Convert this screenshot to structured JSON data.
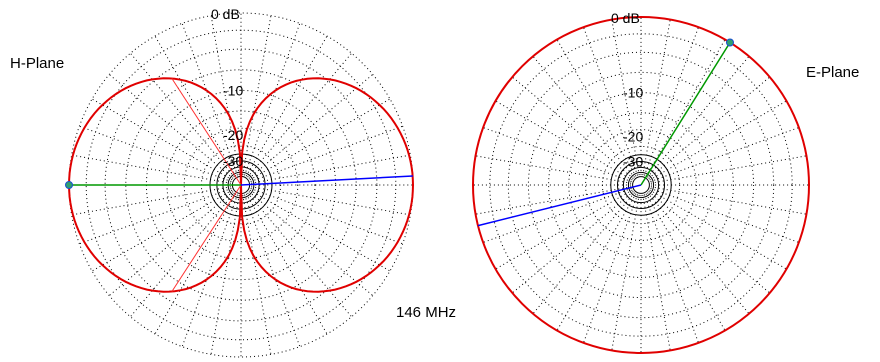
{
  "chart_data": [
    {
      "type": "polar",
      "title": "H-Plane",
      "radial_axis": {
        "unit": "dB",
        "tick_labels": [
          "0 dB",
          "-10",
          "-20",
          "-30"
        ],
        "scale": "log"
      },
      "grid": true,
      "pattern": {
        "shape": "figure-eight",
        "nulls_deg": [
          0,
          180
        ],
        "max_deg": [
          90,
          270
        ],
        "max_gain_db": 0
      },
      "markers": {
        "green_line_deg": 270,
        "red_lines_deg": [
          327,
          213
        ],
        "blue_line_deg": 87
      },
      "color": "#e00000"
    },
    {
      "type": "polar",
      "title": "E-Plane",
      "radial_axis": {
        "unit": "dB",
        "tick_labels": [
          "0 dB",
          "-10",
          "-20",
          "-30"
        ],
        "scale": "log"
      },
      "grid": true,
      "pattern": {
        "shape": "omnidirectional",
        "gain_db": 0
      },
      "markers": {
        "green_line_deg": 32,
        "blue_line_deg": 256
      },
      "color": "#e00000"
    }
  ],
  "labels": {
    "h_plane": "H-Plane",
    "e_plane": "E-Plane",
    "frequency": "146 MHz"
  }
}
